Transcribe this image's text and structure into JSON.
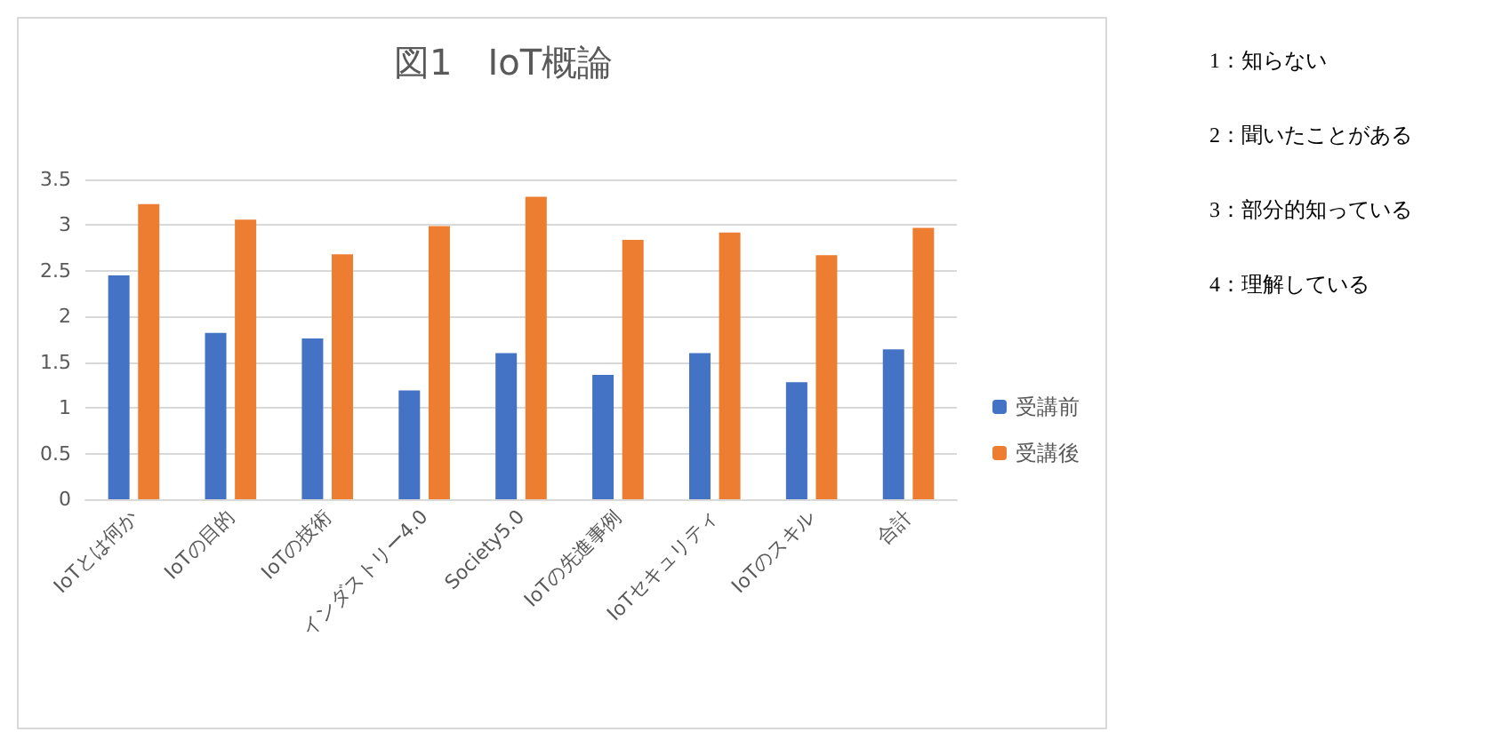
{
  "chart_data": {
    "type": "bar",
    "title": "図1　IoT概論",
    "categories": [
      "IoTとは何か",
      "IoTの目的",
      "IoTの技術",
      "インダストリー4.0",
      "Society5.0",
      "IoTの先進事例",
      "IoTセキュリティ",
      "IoTのスキル",
      "合計"
    ],
    "series": [
      {
        "name": "受講前",
        "color": "#4472c4",
        "values": [
          2.45,
          1.82,
          1.76,
          1.19,
          1.6,
          1.36,
          1.6,
          1.28,
          1.64
        ]
      },
      {
        "name": "受講後",
        "color": "#ed7d31",
        "values": [
          3.23,
          3.06,
          2.68,
          2.99,
          3.31,
          2.84,
          2.92,
          2.67,
          2.97
        ]
      }
    ],
    "ylim": [
      0,
      3.5
    ],
    "yticks": [
      0,
      0.5,
      1,
      1.5,
      2,
      2.5,
      3,
      3.5
    ],
    "grid": "y",
    "legend": "right",
    "annotations": [
      "1：知らない",
      "2：聞いたことがある",
      "3：部分的知っている",
      "4：理解している"
    ]
  }
}
